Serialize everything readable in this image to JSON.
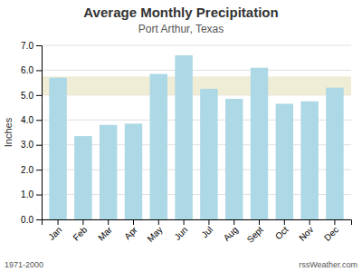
{
  "chart_data": {
    "type": "bar",
    "title": "Average Monthly Precipitation",
    "subtitle": "Port Arthur, Texas",
    "y_label": "Inches",
    "categories": [
      "Jan",
      "Feb",
      "Mar",
      "Apr",
      "May",
      "Jun",
      "Jul",
      "Aug",
      "Sept",
      "Oct",
      "Nov",
      "Dec"
    ],
    "values": [
      5.7,
      3.35,
      3.8,
      3.85,
      5.85,
      6.6,
      5.25,
      4.85,
      6.1,
      4.65,
      4.75,
      5.3
    ],
    "color": "#ADD8E6",
    "ylim": [
      0.0,
      7.0
    ],
    "yticks": [
      {
        "value": 0,
        "label": "0.0"
      },
      {
        "value": 1,
        "label": "1.0"
      },
      {
        "value": 2,
        "label": "2.0"
      },
      {
        "value": 3,
        "label": "3.0"
      },
      {
        "value": 4,
        "label": "4.0"
      },
      {
        "value": 5,
        "label": "5.0"
      },
      {
        "value": 6,
        "label": "6.0"
      },
      {
        "value": 7,
        "label": "7.0"
      }
    ],
    "grid": true,
    "shaded_band": [
      5.0,
      5.75
    ],
    "annotations": [
      "1971-2000",
      "rssWeather.com"
    ]
  }
}
